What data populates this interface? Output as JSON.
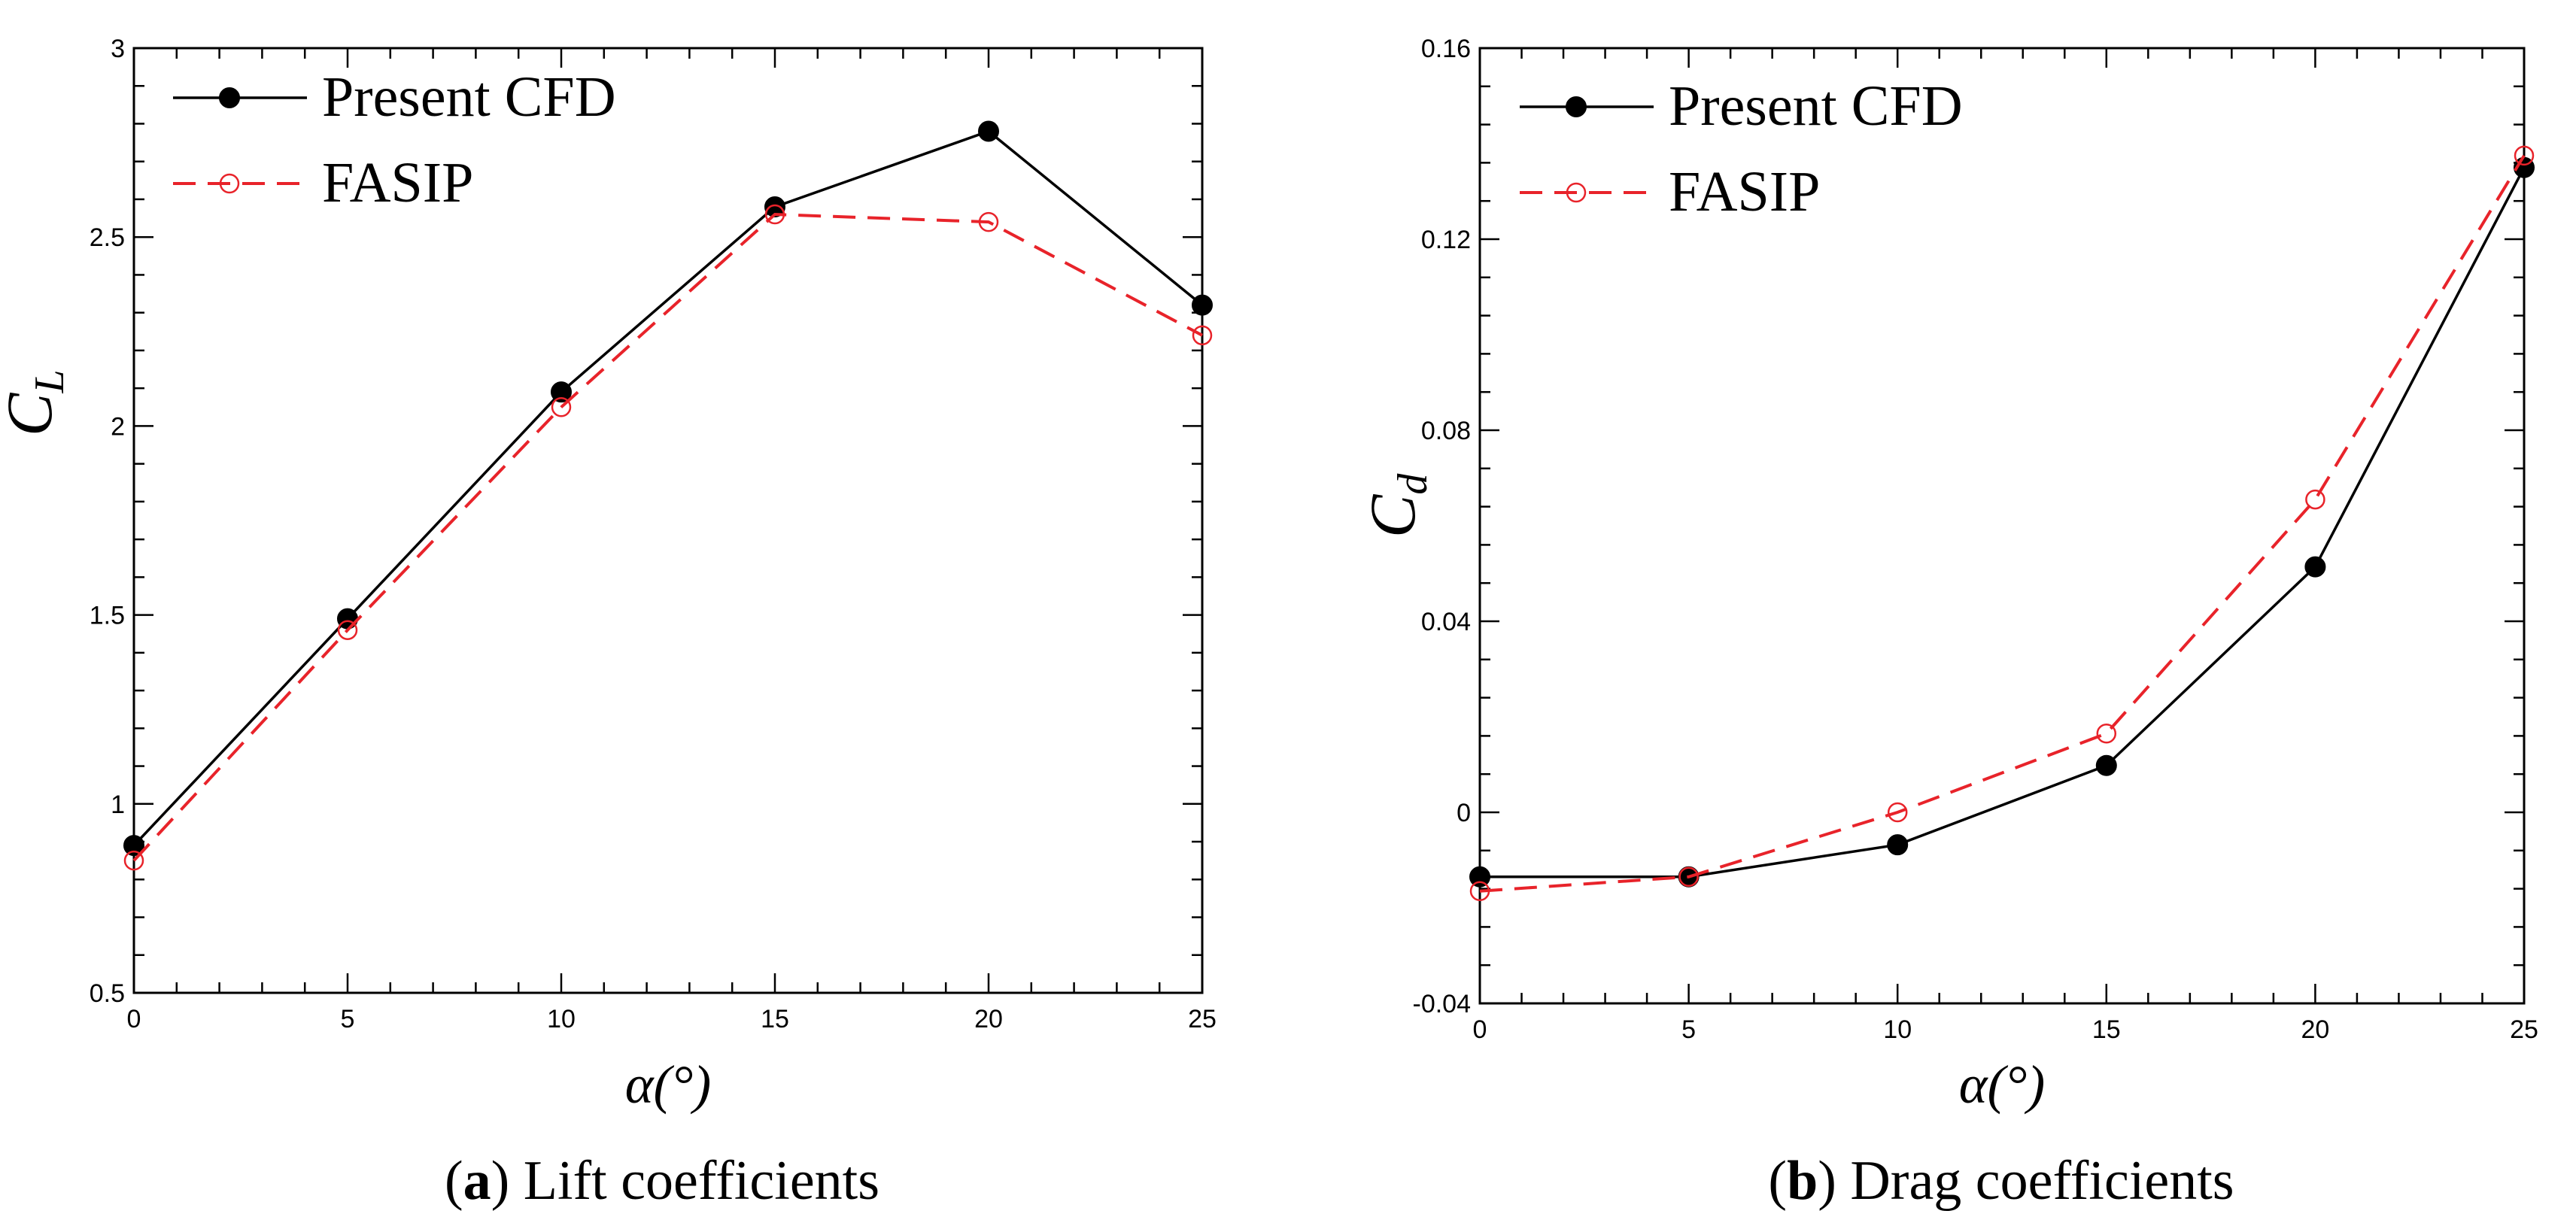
{
  "chart_data": [
    {
      "type": "line",
      "xlabel": "α(°)",
      "ylabel": {
        "main": "C",
        "sub": "L"
      },
      "xlim": [
        0,
        25
      ],
      "ylim": [
        0.5,
        3
      ],
      "xticks": [
        0,
        5,
        10,
        15,
        20,
        25
      ],
      "xtick_labels": [
        "0",
        "5",
        "10",
        "15",
        "20",
        "25"
      ],
      "yticks": [
        0.5,
        1,
        1.5,
        2,
        2.5,
        3
      ],
      "ytick_labels": [
        "0.5",
        "1",
        "1.5",
        "2",
        "2.5",
        "3"
      ],
      "grid": false,
      "legend_position": "top-left",
      "caption": {
        "label": "a",
        "text": " Lift coefficients"
      },
      "series": [
        {
          "name": "Present CFD",
          "color": "#000000",
          "style": "solid",
          "marker": "filled-circle",
          "x": [
            0,
            5,
            10,
            15,
            20,
            25
          ],
          "y": [
            0.89,
            1.49,
            2.09,
            2.58,
            2.78,
            2.32
          ]
        },
        {
          "name": "FASIP",
          "color": "#e8232a",
          "style": "dashed",
          "marker": "open-circle",
          "x": [
            0,
            5,
            10,
            15,
            20,
            25
          ],
          "y": [
            0.85,
            1.46,
            2.05,
            2.56,
            2.54,
            2.24
          ]
        }
      ]
    },
    {
      "type": "line",
      "xlabel": "α(°)",
      "ylabel": {
        "main": "C",
        "sub": "d"
      },
      "xlim": [
        0,
        25
      ],
      "ylim": [
        -0.04,
        0.16
      ],
      "xticks": [
        0,
        5,
        10,
        15,
        20,
        25
      ],
      "xtick_labels": [
        "0",
        "5",
        "10",
        "15",
        "20",
        "25"
      ],
      "yticks": [
        -0.04,
        0,
        0.04,
        0.08,
        0.12,
        0.16
      ],
      "ytick_labels": [
        "-0.04",
        "0",
        "0.04",
        "0.08",
        "0.12",
        "0.16"
      ],
      "grid": false,
      "legend_position": "top-left",
      "caption": {
        "label": "b",
        "text": " Drag coefficients"
      },
      "series": [
        {
          "name": "Present CFD",
          "color": "#000000",
          "style": "solid",
          "marker": "filled-circle",
          "x": [
            0,
            5,
            10,
            15,
            20,
            25
          ],
          "y": [
            -0.0135,
            -0.0135,
            -0.0068,
            0.0098,
            0.0514,
            0.135
          ]
        },
        {
          "name": "FASIP",
          "color": "#e8232a",
          "style": "dashed",
          "marker": "open-circle",
          "x": [
            0,
            5,
            10,
            15,
            20,
            25
          ],
          "y": [
            -0.0165,
            -0.0135,
            0.0,
            0.0165,
            0.0655,
            0.1375
          ]
        }
      ]
    }
  ]
}
